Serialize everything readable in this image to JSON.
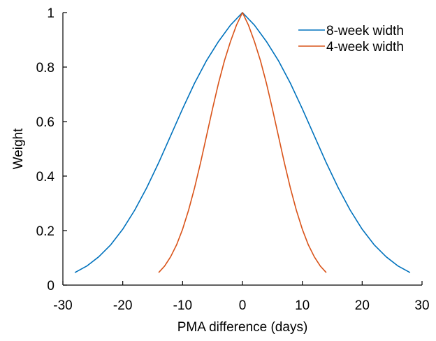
{
  "chart_data": {
    "type": "line",
    "title": "",
    "xlabel": "PMA difference (days)",
    "ylabel": "Weight",
    "xlim": [
      -30,
      30
    ],
    "ylim": [
      0,
      1
    ],
    "xticks": [
      "-30",
      "-20",
      "-10",
      "0",
      "10",
      "20",
      "30"
    ],
    "yticks": [
      "0",
      "0.2",
      "0.4",
      "0.6",
      "0.8",
      "1"
    ],
    "grid": false,
    "legend_position": "top-right",
    "series": [
      {
        "name": "8-week width",
        "color": "#0072BD",
        "x": [
          -28,
          -26,
          -24,
          -22,
          -20,
          -18,
          -16,
          -14,
          -12,
          -10,
          -8,
          -6,
          -4,
          -2,
          0,
          2,
          4,
          6,
          8,
          10,
          12,
          14,
          16,
          18,
          20,
          22,
          24,
          26,
          28
        ],
        "y": [
          0.046,
          0.07,
          0.104,
          0.148,
          0.205,
          0.275,
          0.357,
          0.449,
          0.548,
          0.647,
          0.741,
          0.824,
          0.894,
          0.954,
          1.0,
          0.954,
          0.894,
          0.824,
          0.741,
          0.647,
          0.548,
          0.449,
          0.357,
          0.275,
          0.205,
          0.148,
          0.104,
          0.07,
          0.046
        ]
      },
      {
        "name": "4-week width",
        "color": "#D95319",
        "x": [
          -14,
          -13,
          -12,
          -11,
          -10,
          -9,
          -8,
          -7,
          -6,
          -5,
          -4,
          -3,
          -2,
          -1,
          0,
          1,
          2,
          3,
          4,
          5,
          6,
          7,
          8,
          9,
          10,
          11,
          12,
          13,
          14
        ],
        "y": [
          0.046,
          0.07,
          0.104,
          0.148,
          0.205,
          0.275,
          0.357,
          0.449,
          0.548,
          0.647,
          0.741,
          0.824,
          0.894,
          0.954,
          1.0,
          0.954,
          0.894,
          0.824,
          0.741,
          0.647,
          0.548,
          0.449,
          0.357,
          0.275,
          0.205,
          0.148,
          0.104,
          0.07,
          0.046
        ]
      }
    ]
  }
}
